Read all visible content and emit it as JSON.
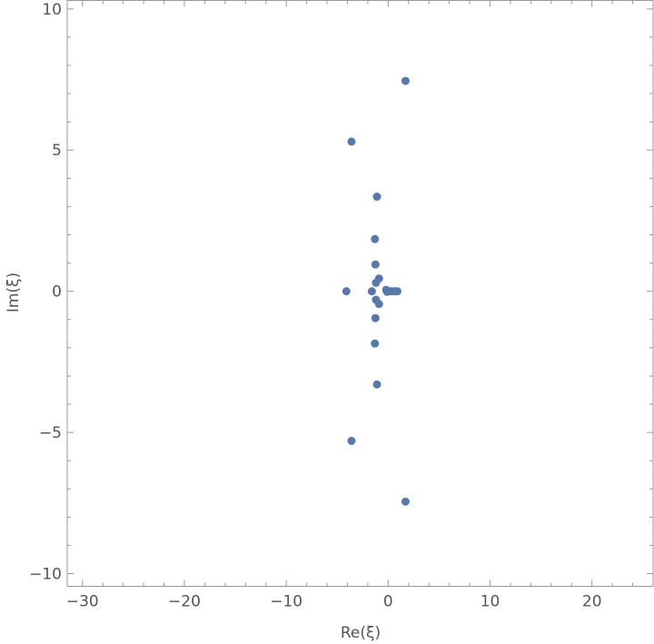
{
  "chart_data": {
    "type": "scatter",
    "title": "",
    "xlabel": "Re(ξ)",
    "ylabel": "Im(ξ)",
    "xlim": [
      -31.5,
      26.0
    ],
    "ylim": [
      -10.45,
      10.3
    ],
    "grid": false,
    "legend": "none",
    "point_color": "#5878ac",
    "x_ticks": [
      {
        "value": -30,
        "label": "−30"
      },
      {
        "value": -20,
        "label": "−20"
      },
      {
        "value": -10,
        "label": "−10"
      },
      {
        "value": 0,
        "label": "0"
      },
      {
        "value": 10,
        "label": "10"
      },
      {
        "value": 20,
        "label": "20"
      }
    ],
    "y_ticks": [
      {
        "value": 10,
        "label": "10"
      },
      {
        "value": 5,
        "label": "5"
      },
      {
        "value": 0,
        "label": "0"
      },
      {
        "value": -5,
        "label": "−5"
      },
      {
        "value": -10,
        "label": "−10"
      }
    ],
    "series": [
      {
        "points": [
          [
            1.7,
            7.45
          ],
          [
            1.7,
            -7.45
          ],
          [
            -3.6,
            5.3
          ],
          [
            -3.6,
            -5.3
          ],
          [
            -1.1,
            3.35
          ],
          [
            -1.1,
            -3.3
          ],
          [
            -1.3,
            1.85
          ],
          [
            -1.3,
            -1.85
          ],
          [
            -1.25,
            0.95
          ],
          [
            -1.25,
            -0.95
          ],
          [
            -4.1,
            0.0
          ],
          [
            -1.6,
            0.0
          ],
          [
            -1.2,
            0.3
          ],
          [
            -1.2,
            -0.3
          ],
          [
            -0.9,
            0.45
          ],
          [
            -0.9,
            -0.45
          ],
          [
            -0.2,
            0.05
          ],
          [
            -0.1,
            -0.02
          ],
          [
            0.3,
            0.0
          ],
          [
            0.6,
            0.0
          ],
          [
            0.9,
            0.0
          ]
        ]
      }
    ]
  }
}
